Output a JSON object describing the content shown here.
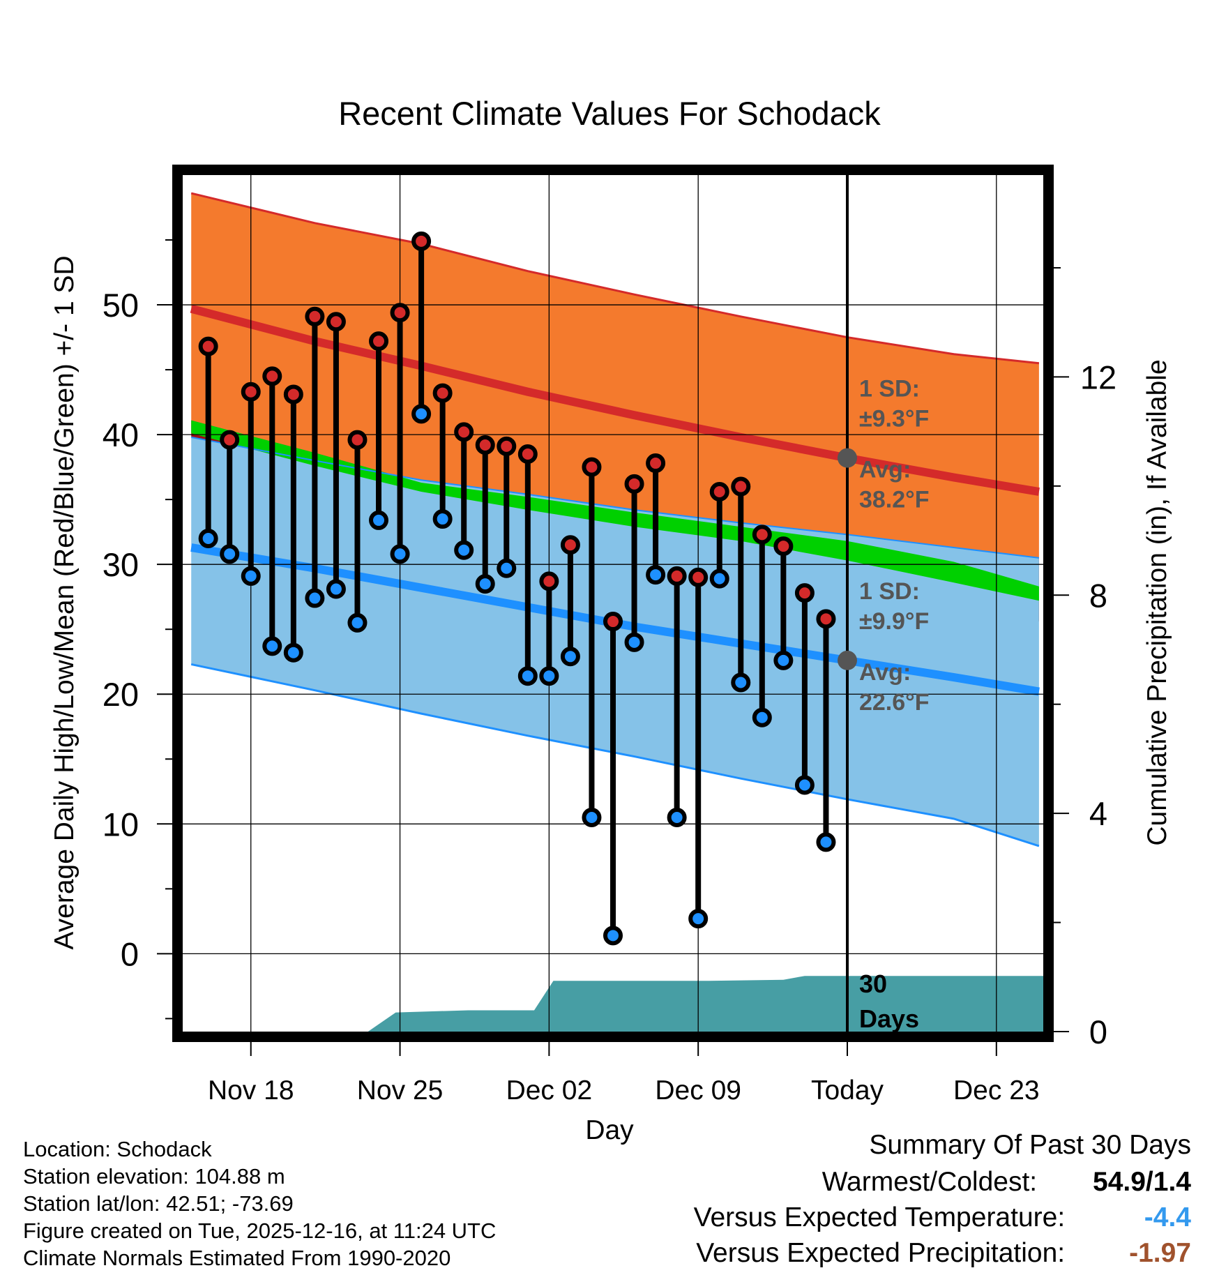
{
  "chart_data": {
    "type": "line",
    "title": "Recent Climate Values For Schodack",
    "xlabel": "Day",
    "ylabel": "Average Daily High/Low/Mean (Red/Blue/Green) +/- 1 SD",
    "ylabel_right": "Cumulative Precipitation (in), If Available",
    "x_ticks": [
      "Nov 18",
      "Nov 25",
      "Dec 02",
      "Dec 09",
      "Today",
      "Dec 23"
    ],
    "x_tick_days": [
      2,
      9,
      16,
      23,
      30,
      37
    ],
    "xlim": [
      -1.2,
      39.2
    ],
    "ylim": [
      -6.0,
      60.0
    ],
    "y_ticks": [
      0,
      10,
      20,
      30,
      40,
      50
    ],
    "y2lim": [
      -0.0,
      15.7
    ],
    "y2_ticks": [
      0,
      4,
      8,
      12
    ],
    "today_day": 30,
    "colors": {
      "high_band": "#f47a2d",
      "high_line": "#d42a2a",
      "low_band": "#85c2e8",
      "low_line": "#1e90ff",
      "mean_line": "#00d000",
      "overlap": "#9a1016",
      "precip": "#479ea4",
      "high_dot": "#d42a2a",
      "low_dot": "#1e90ff",
      "marker": "#555555",
      "annot": "#555555",
      "cold_value": "#3399ee",
      "precip_value": "#a0522d"
    },
    "normals": {
      "days": [
        -0.8,
        5,
        10,
        15,
        20,
        25,
        30,
        35,
        39
      ],
      "high_avg": [
        49.7,
        47.2,
        45.3,
        43.3,
        41.5,
        39.8,
        38.2,
        36.7,
        35.6
      ],
      "high_sd_upper": [
        58.6,
        56.3,
        54.7,
        52.6,
        50.8,
        49.1,
        47.5,
        46.2,
        45.5
      ],
      "low_avg": [
        31.3,
        29.7,
        28.2,
        26.7,
        25.2,
        23.9,
        22.6,
        21.3,
        20.2
      ],
      "low_sd_upper": [
        39.8,
        38.0,
        36.5,
        35.4,
        34.2,
        33.2,
        32.3,
        31.3,
        30.5
      ],
      "low_sd_lower": [
        22.3,
        20.3,
        18.5,
        16.8,
        15.2,
        13.5,
        11.9,
        10.4,
        8.3
      ],
      "high_sd_lower": [
        41.1,
        38.6,
        36.3,
        34.3,
        32.2,
        30.4,
        28.9,
        27.0,
        25.6
      ],
      "mean_upper": [
        41.1,
        38.6,
        36.3,
        35.2,
        34.0,
        32.9,
        31.8,
        30.2,
        28.3
      ],
      "mean_lower": [
        40.1,
        37.6,
        35.6,
        34.2,
        32.9,
        31.8,
        30.3,
        28.6,
        27.2
      ]
    },
    "daily": {
      "days": [
        0,
        1,
        2,
        3,
        4,
        5,
        6,
        7,
        8,
        9,
        10,
        11,
        12,
        13,
        14,
        15,
        16,
        17,
        18,
        19,
        20,
        21,
        22,
        23,
        24,
        25,
        26,
        27,
        28,
        29
      ],
      "high": [
        46.8,
        39.6,
        43.3,
        44.5,
        43.1,
        49.1,
        48.7,
        39.6,
        47.2,
        49.4,
        54.9,
        43.2,
        40.2,
        39.2,
        39.1,
        38.5,
        28.7,
        31.5,
        37.5,
        25.6,
        36.2,
        37.8,
        29.1,
        29.0,
        35.6,
        36.0,
        32.3,
        31.4,
        27.8,
        25.8
      ],
      "low": [
        32.0,
        30.8,
        29.1,
        23.7,
        23.2,
        27.4,
        28.1,
        25.5,
        33.4,
        30.8,
        41.6,
        33.5,
        31.1,
        28.5,
        29.7,
        21.4,
        21.4,
        22.9,
        10.5,
        1.4,
        24.0,
        29.2,
        10.5,
        2.7,
        28.9,
        20.9,
        18.2,
        22.6,
        13.0,
        8.6
      ]
    },
    "precipitation": {
      "days": [
        -1.2,
        7.5,
        8.8,
        12.2,
        13.6,
        15.3,
        16.2,
        23.5,
        27.0,
        28.0,
        39.2
      ],
      "cumulative": [
        0.0,
        0.0,
        0.35,
        0.39,
        0.39,
        0.39,
        0.93,
        0.93,
        0.95,
        1.02,
        1.02
      ]
    },
    "annotations": {
      "high_sd_label": "1 SD:",
      "high_sd_value": "±9.3°F",
      "high_avg_label": "Avg:",
      "high_avg_value": "38.2°F",
      "low_sd_label": "1 SD:",
      "low_sd_value": "±9.9°F",
      "low_avg_label": "Avg:",
      "low_avg_value": "22.6°F",
      "days_number": "30",
      "days_word": "Days"
    }
  },
  "info": {
    "location": "Location: Schodack",
    "elevation": "Station elevation: 104.88 m",
    "latlon": "Station lat/lon: 42.51; -73.69",
    "created": "Figure created on Tue, 2025-12-16, at 11:24 UTC",
    "normals": "Climate Normals Estimated From 1990-2020"
  },
  "summary": {
    "title": "Summary Of Past 30 Days",
    "warm_label": "Warmest/Coldest:",
    "warm_value": "54.9/1.4",
    "temp_label": "Versus Expected Temperature:",
    "temp_value": "-4.4",
    "precip_label": "Versus Expected Precipitation:",
    "precip_value": "-1.97"
  }
}
